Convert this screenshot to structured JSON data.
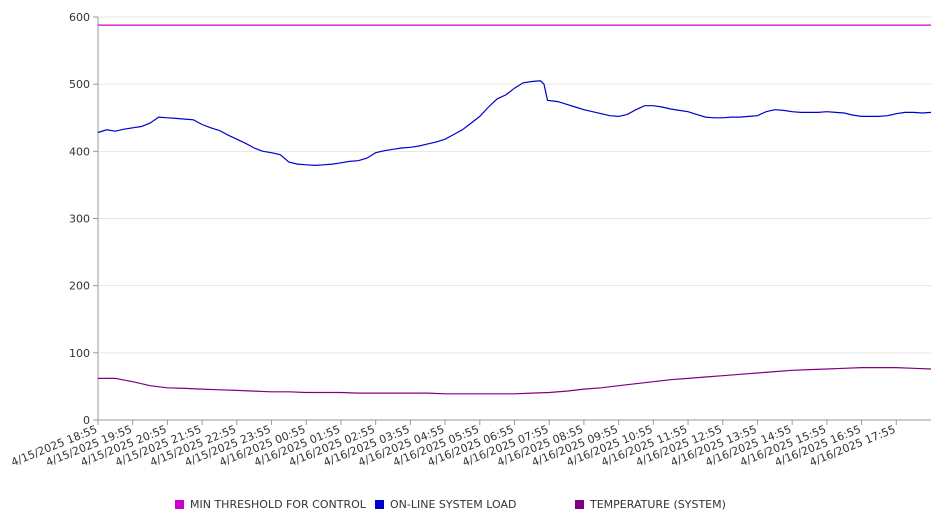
{
  "chart_data": {
    "type": "line",
    "ylim": [
      0,
      600
    ],
    "y_ticks": [
      "0",
      "100",
      "200",
      "300",
      "400",
      "500",
      "600"
    ],
    "x_tick_labels": [
      "4/15/2025 18:55",
      "4/15/2025 19:55",
      "4/15/2025 20:55",
      "4/15/2025 21:55",
      "4/15/2025 22:55",
      "4/15/2025 23:55",
      "4/16/2025 00:55",
      "4/16/2025 01:55",
      "4/16/2025 02:55",
      "4/16/2025 03:55",
      "4/16/2025 04:55",
      "4/16/2025 05:55",
      "4/16/2025 06:55",
      "4/16/2025 07:55",
      "4/16/2025 08:55",
      "4/16/2025 09:55",
      "4/16/2025 10:55",
      "4/16/2025 11:55",
      "4/16/2025 12:55",
      "4/16/2025 13:55",
      "4/16/2025 14:55",
      "4/16/2025 15:55",
      "4/16/2025 16:55",
      "4/16/2025 17:55"
    ],
    "x_range_hours": [
      0,
      24
    ],
    "grid": "horizontal",
    "legend_position": "bottom",
    "series": [
      {
        "name": "MIN THRESHOLD FOR CONTROL",
        "color": "#cc00cc",
        "points": [
          [
            0,
            588
          ],
          [
            24,
            588
          ]
        ]
      },
      {
        "name": "ON-LINE SYSTEM LOAD",
        "color": "#0000cc",
        "points": [
          [
            0,
            428
          ],
          [
            0.25,
            432
          ],
          [
            0.5,
            430
          ],
          [
            0.75,
            433
          ],
          [
            1.0,
            435
          ],
          [
            1.25,
            437
          ],
          [
            1.5,
            442
          ],
          [
            1.75,
            451
          ],
          [
            2.0,
            450
          ],
          [
            2.25,
            449
          ],
          [
            2.5,
            448
          ],
          [
            2.75,
            447
          ],
          [
            3.0,
            440
          ],
          [
            3.25,
            435
          ],
          [
            3.5,
            431
          ],
          [
            3.75,
            424
          ],
          [
            4.0,
            418
          ],
          [
            4.25,
            412
          ],
          [
            4.5,
            405
          ],
          [
            4.75,
            400
          ],
          [
            5.0,
            398
          ],
          [
            5.25,
            395
          ],
          [
            5.5,
            384
          ],
          [
            5.75,
            381
          ],
          [
            6.0,
            380
          ],
          [
            6.25,
            379
          ],
          [
            6.5,
            380
          ],
          [
            6.75,
            381
          ],
          [
            7.0,
            383
          ],
          [
            7.25,
            385
          ],
          [
            7.5,
            386
          ],
          [
            7.75,
            390
          ],
          [
            8.0,
            398
          ],
          [
            8.25,
            401
          ],
          [
            8.5,
            403
          ],
          [
            8.75,
            405
          ],
          [
            9.0,
            406
          ],
          [
            9.25,
            408
          ],
          [
            9.5,
            411
          ],
          [
            9.75,
            414
          ],
          [
            10.0,
            418
          ],
          [
            10.25,
            425
          ],
          [
            10.5,
            432
          ],
          [
            10.75,
            442
          ],
          [
            11.0,
            452
          ],
          [
            11.25,
            466
          ],
          [
            11.5,
            478
          ],
          [
            11.75,
            484
          ],
          [
            12.0,
            494
          ],
          [
            12.25,
            502
          ],
          [
            12.5,
            504
          ],
          [
            12.75,
            505
          ],
          [
            12.85,
            500
          ],
          [
            12.95,
            476
          ],
          [
            13.25,
            474
          ],
          [
            13.5,
            470
          ],
          [
            13.75,
            466
          ],
          [
            14.0,
            462
          ],
          [
            14.25,
            459
          ],
          [
            14.5,
            456
          ],
          [
            14.75,
            453
          ],
          [
            15.0,
            452
          ],
          [
            15.25,
            455
          ],
          [
            15.5,
            462
          ],
          [
            15.75,
            468
          ],
          [
            16.0,
            468
          ],
          [
            16.25,
            466
          ],
          [
            16.5,
            463
          ],
          [
            16.75,
            461
          ],
          [
            17.0,
            459
          ],
          [
            17.25,
            455
          ],
          [
            17.5,
            451
          ],
          [
            17.75,
            450
          ],
          [
            18.0,
            450
          ],
          [
            18.25,
            451
          ],
          [
            18.5,
            451
          ],
          [
            18.75,
            452
          ],
          [
            19.0,
            453
          ],
          [
            19.25,
            459
          ],
          [
            19.5,
            462
          ],
          [
            19.75,
            461
          ],
          [
            20.0,
            459
          ],
          [
            20.25,
            458
          ],
          [
            20.5,
            458
          ],
          [
            20.75,
            458
          ],
          [
            21.0,
            459
          ],
          [
            21.25,
            458
          ],
          [
            21.5,
            457
          ],
          [
            21.75,
            454
          ],
          [
            22.0,
            452
          ],
          [
            22.25,
            452
          ],
          [
            22.5,
            452
          ],
          [
            22.75,
            453
          ],
          [
            23.0,
            456
          ],
          [
            23.25,
            458
          ],
          [
            23.5,
            458
          ],
          [
            23.75,
            457
          ],
          [
            24.0,
            458
          ]
        ]
      },
      {
        "name": "TEMPERATURE (SYSTEM)",
        "color": "#800080",
        "points": [
          [
            0,
            62
          ],
          [
            0.5,
            62
          ],
          [
            1.0,
            57
          ],
          [
            1.5,
            51
          ],
          [
            2.0,
            48
          ],
          [
            2.5,
            47
          ],
          [
            3.0,
            46
          ],
          [
            3.5,
            45
          ],
          [
            4.0,
            44
          ],
          [
            4.5,
            43
          ],
          [
            5.0,
            42
          ],
          [
            5.5,
            42
          ],
          [
            6.0,
            41
          ],
          [
            6.5,
            41
          ],
          [
            7.0,
            41
          ],
          [
            7.5,
            40
          ],
          [
            8.0,
            40
          ],
          [
            8.5,
            40
          ],
          [
            9.0,
            40
          ],
          [
            9.5,
            40
          ],
          [
            10.0,
            39
          ],
          [
            10.5,
            39
          ],
          [
            11.0,
            39
          ],
          [
            11.5,
            39
          ],
          [
            12.0,
            39
          ],
          [
            12.5,
            40
          ],
          [
            13.0,
            41
          ],
          [
            13.5,
            43
          ],
          [
            14.0,
            46
          ],
          [
            14.5,
            48
          ],
          [
            15.0,
            51
          ],
          [
            15.5,
            54
          ],
          [
            16.0,
            57
          ],
          [
            16.5,
            60
          ],
          [
            17.0,
            62
          ],
          [
            17.5,
            64
          ],
          [
            18.0,
            66
          ],
          [
            18.5,
            68
          ],
          [
            19.0,
            70
          ],
          [
            19.5,
            72
          ],
          [
            20.0,
            74
          ],
          [
            20.5,
            75
          ],
          [
            21.0,
            76
          ],
          [
            21.5,
            77
          ],
          [
            22.0,
            78
          ],
          [
            22.5,
            78
          ],
          [
            23.0,
            78
          ],
          [
            23.5,
            77
          ],
          [
            24.0,
            76
          ]
        ]
      }
    ]
  }
}
